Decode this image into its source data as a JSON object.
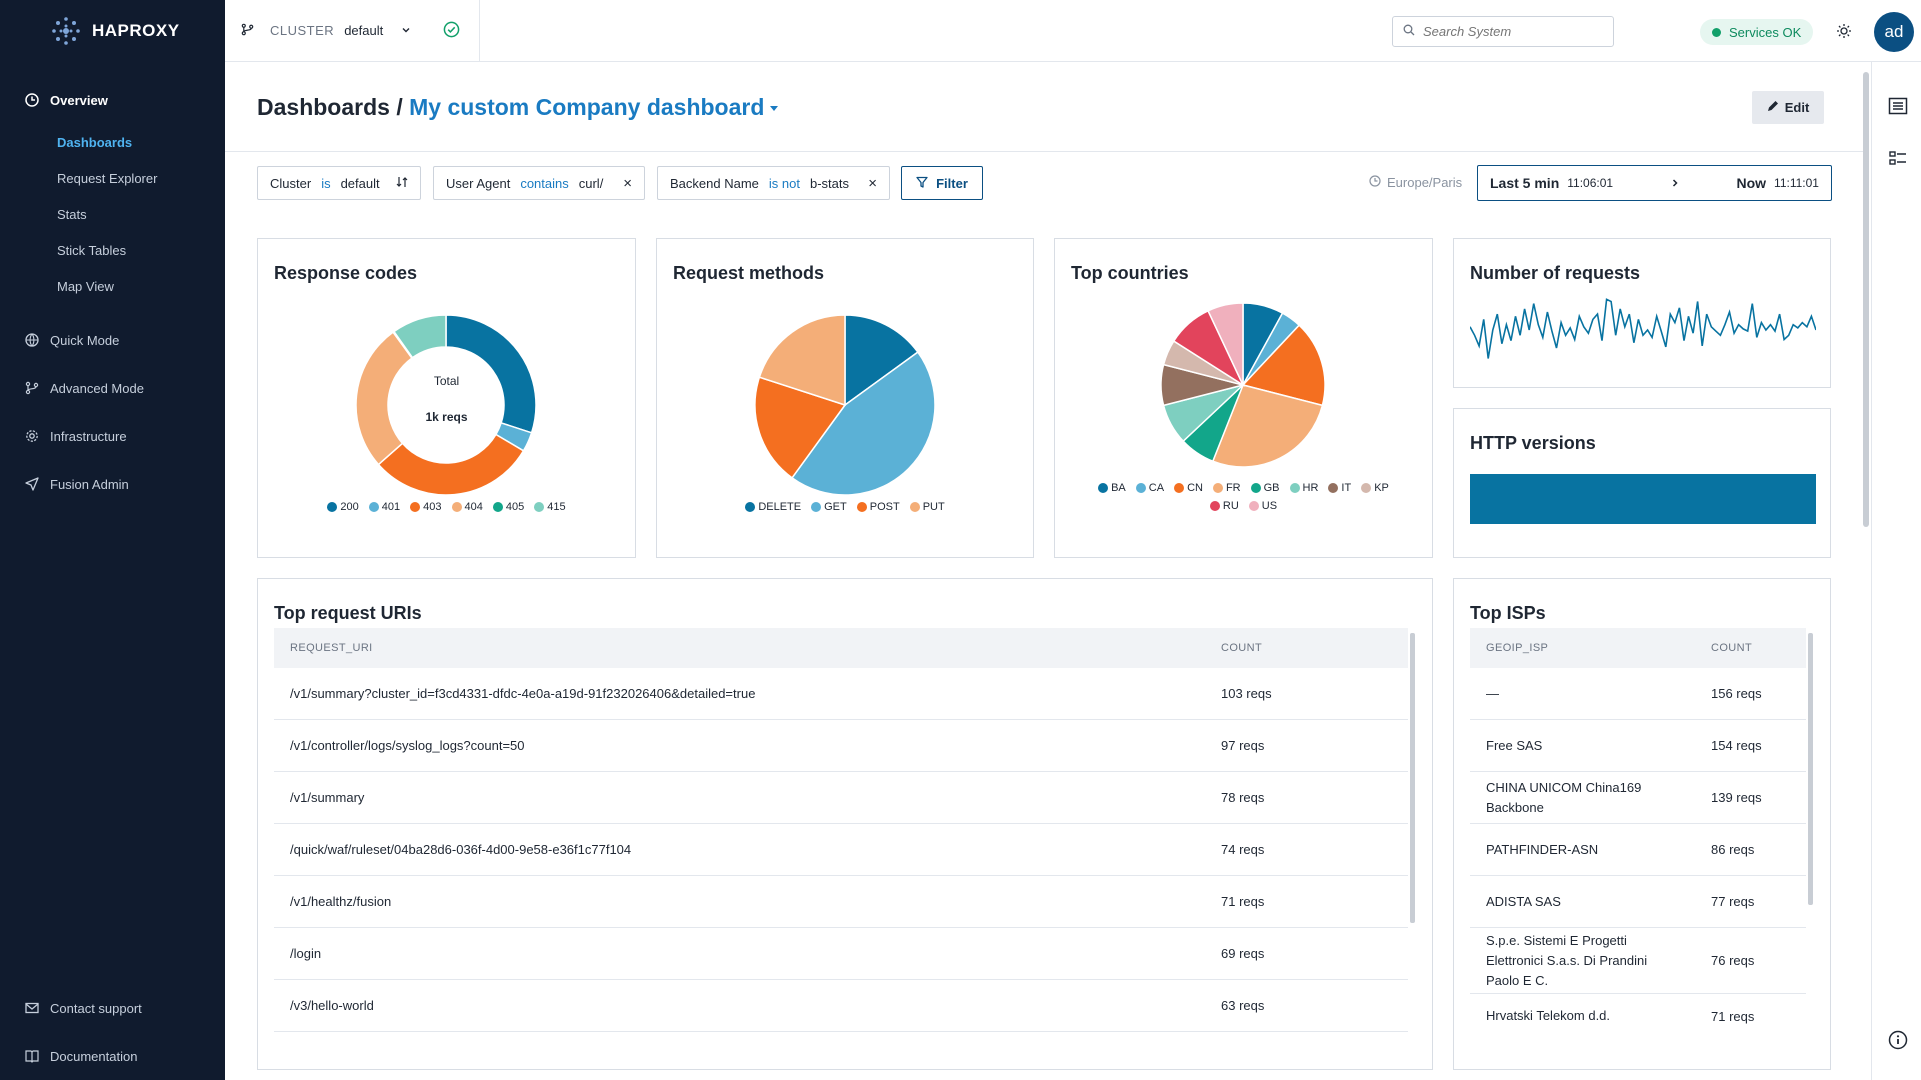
{
  "app": {
    "logo_text": "HAPROXY"
  },
  "sidebar": {
    "overview_label": "Overview",
    "sub_items": [
      "Dashboards",
      "Request Explorer",
      "Stats",
      "Stick Tables",
      "Map View"
    ],
    "items": [
      "Quick Mode",
      "Advanced Mode",
      "Infrastructure",
      "Fusion Admin"
    ],
    "bottom_items": [
      "Contact support",
      "Documentation"
    ]
  },
  "topbar": {
    "cluster_label": "CLUSTER",
    "cluster_value": "default",
    "search_placeholder": "Search System",
    "services_label": "Services OK",
    "avatar": "ad"
  },
  "header": {
    "title_prefix": "Dashboards /",
    "dashboard_name": "My custom Company dashboard",
    "edit_label": "Edit"
  },
  "filters": {
    "chips": [
      {
        "field": "Cluster",
        "op": "is",
        "value": "default"
      },
      {
        "field": "User Agent",
        "op": "contains",
        "value": "curl/"
      },
      {
        "field": "Backend Name",
        "op": "is not",
        "value": "b-stats"
      }
    ],
    "filter_label": "Filter",
    "timezone": "Europe/Paris",
    "range_start_label": "Last 5 min",
    "range_start_time": "11:06:01",
    "range_end_label": "Now",
    "range_end_time": "11:11:01"
  },
  "cards": {
    "response_codes": {
      "title": "Response codes",
      "center_label": "Total",
      "center_value": "1k reqs"
    },
    "request_methods": {
      "title": "Request methods"
    },
    "top_countries": {
      "title": "Top countries"
    },
    "number_of_requests": {
      "title": "Number of requests"
    },
    "http_versions": {
      "title": "HTTP versions"
    }
  },
  "colors": {
    "blue_dark": "#0873a1",
    "blue_light": "#5bb1d6",
    "orange": "#f46f20",
    "peach": "#f4ae78",
    "teal": "#12a68a",
    "mint": "#7ecfc0",
    "brown": "#93705f",
    "taupe": "#d4b8ad",
    "crimson": "#e2445c",
    "pink": "#f0b0bd"
  },
  "chart_data": [
    {
      "type": "pie",
      "title": "Response codes",
      "categories": [
        "200",
        "401",
        "403",
        "404",
        "405",
        "415"
      ],
      "values": [
        30,
        3.5,
        30,
        26.5,
        0.2,
        9.8
      ],
      "colors": [
        "#0873a1",
        "#5bb1d6",
        "#f46f20",
        "#f4ae78",
        "#12a68a",
        "#7ecfc0"
      ]
    },
    {
      "type": "pie",
      "title": "Request methods",
      "categories": [
        "DELETE",
        "GET",
        "POST",
        "PUT"
      ],
      "values": [
        15,
        45,
        20,
        20
      ],
      "colors": [
        "#0873a1",
        "#5bb1d6",
        "#f46f20",
        "#f4ae78"
      ]
    },
    {
      "type": "pie",
      "title": "Top countries",
      "categories": [
        "BA",
        "CA",
        "CN",
        "FR",
        "GB",
        "HR",
        "IT",
        "KP",
        "RU",
        "US"
      ],
      "values": [
        8,
        4,
        17,
        27,
        7,
        8,
        8,
        5,
        9,
        7
      ],
      "colors": [
        "#0873a1",
        "#5bb1d6",
        "#f46f20",
        "#f4ae78",
        "#12a68a",
        "#7ecfc0",
        "#93705f",
        "#d4b8ad",
        "#e2445c",
        "#f0b0bd"
      ]
    },
    {
      "type": "line",
      "title": "Number of requests",
      "values": [
        48,
        40,
        30,
        55,
        18,
        45,
        60,
        32,
        50,
        35,
        58,
        40,
        65,
        45,
        70,
        50,
        38,
        62,
        44,
        28,
        52,
        40,
        47,
        36,
        58,
        48,
        42,
        55,
        60,
        35,
        74,
        72,
        40,
        65,
        48,
        60,
        33,
        55,
        40,
        45,
        38,
        58,
        44,
        29,
        60,
        52,
        66,
        35,
        58,
        42,
        72,
        30,
        60,
        48,
        44,
        40,
        50,
        62,
        42,
        50,
        46,
        44,
        70,
        38,
        52,
        45,
        50,
        44,
        60,
        36,
        40,
        50,
        47,
        52,
        48,
        58,
        45
      ]
    },
    {
      "type": "bar",
      "title": "HTTP versions",
      "categories": [
        ""
      ],
      "values": [
        100
      ],
      "colors": [
        "#0873a1"
      ]
    }
  ],
  "top_uris": {
    "title": "Top request URIs",
    "col_uri": "REQUEST_URI",
    "col_count": "COUNT",
    "rows": [
      {
        "uri": "/v1/summary?cluster_id=f3cd4331-dfdc-4e0a-a19d-91f232026406&detailed=true",
        "count": "103 reqs"
      },
      {
        "uri": "/v1/controller/logs/syslog_logs?count=50",
        "count": "97 reqs"
      },
      {
        "uri": "/v1/summary",
        "count": "78 reqs"
      },
      {
        "uri": "/quick/waf/ruleset/04ba28d6-036f-4d00-9e58-e36f1c77f104",
        "count": "74 reqs"
      },
      {
        "uri": "/v1/healthz/fusion",
        "count": "71 reqs"
      },
      {
        "uri": "/login",
        "count": "69 reqs"
      },
      {
        "uri": "/v3/hello-world",
        "count": "63 reqs"
      }
    ]
  },
  "top_isps": {
    "title": "Top ISPs",
    "col_isp": "GEOIP_ISP",
    "col_count": "COUNT",
    "rows": [
      {
        "isp": "—",
        "count": "156 reqs"
      },
      {
        "isp": "Free SAS",
        "count": "154 reqs"
      },
      {
        "isp": "CHINA UNICOM China169 Backbone",
        "count": "139 reqs"
      },
      {
        "isp": "PATHFINDER-ASN",
        "count": "86 reqs"
      },
      {
        "isp": "ADISTA SAS",
        "count": "77 reqs"
      },
      {
        "isp": "S.p.e. Sistemi E Progetti Elettronici S.a.s. Di Prandini Paolo E C.",
        "count": "76 reqs"
      },
      {
        "isp": "Hrvatski Telekom d.d.",
        "count": "71 reqs"
      }
    ]
  }
}
